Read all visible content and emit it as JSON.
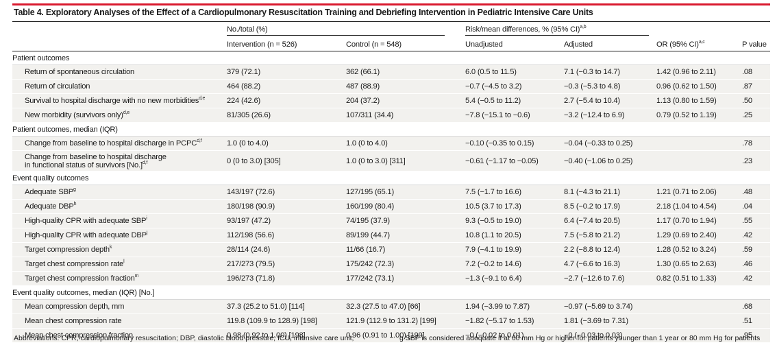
{
  "table": {
    "title": "Table 4. Exploratory Analyses of the Effect of a Cardiopulmonary Resuscitation Training and Debriefing Intervention in Pediatric Intensive Care Units",
    "header": {
      "group1": "No./total (%)",
      "group2": "Risk/mean differences, % (95% CI)",
      "group2_sup": "a,b",
      "intervention": "Intervention (n = 526)",
      "control": "Control (n = 548)",
      "unadjusted": "Unadjusted",
      "adjusted": "Adjusted",
      "or": "OR (95% CI)",
      "or_sup": "a,c",
      "pvalue": "P value"
    },
    "sections": [
      {
        "title": "Patient outcomes",
        "rows": [
          {
            "label": "Return of spontaneous circulation",
            "sup": "",
            "intervention": "379 (72.1)",
            "control": "362 (66.1)",
            "unadjusted": "6.0 (0.5 to 11.5)",
            "adjusted": "7.1 (−0.3 to 14.7)",
            "or": "1.42 (0.96 to 2.11)",
            "p": ".08"
          },
          {
            "label": "Return of circulation",
            "sup": "",
            "intervention": "464 (88.2)",
            "control": "487 (88.9)",
            "unadjusted": "−0.7 (−4.5 to 3.2)",
            "adjusted": "−0.3 (−5.3 to 4.8)",
            "or": "0.96 (0.62 to 1.50)",
            "p": ".87"
          },
          {
            "label": "Survival to hospital discharge with no new morbidities",
            "sup": "d,e",
            "intervention": "224 (42.6)",
            "control": "204 (37.2)",
            "unadjusted": "5.4 (−0.5 to 11.2)",
            "adjusted": "2.7 (−5.4 to 10.4)",
            "or": "1.13 (0.80 to 1.59)",
            "p": ".50"
          },
          {
            "label": "New morbidity (survivors only)",
            "sup": "d,e",
            "intervention": "81/305 (26.6)",
            "control": "107/311 (34.4)",
            "unadjusted": "−7.8 (−15.1 to −0.6)",
            "adjusted": "−3.2 (−12.4 to 6.9)",
            "or": "0.79 (0.52 to 1.19)",
            "p": ".25"
          }
        ]
      },
      {
        "title": "Patient outcomes, median (IQR)",
        "rows": [
          {
            "label": "Change from baseline to hospital discharge in PCPC",
            "sup": "d,f",
            "intervention": "1.0 (0 to 4.0)",
            "control": "1.0 (0 to 4.0)",
            "unadjusted": "−0.10 (−0.35 to 0.15)",
            "adjusted": "−0.04 (−0.33 to 0.25)",
            "or": "",
            "p": ".78"
          },
          {
            "label": "Change from baseline to hospital discharge",
            "label2": "in functional status of survivors [No.]",
            "sup": "d,f",
            "tall": true,
            "intervention": "0 (0 to 3.0) [305]",
            "control": "1.0 (0 to 3.0) [311]",
            "unadjusted": "−0.61 (−1.17 to −0.05)",
            "adjusted": "−0.40 (−1.06 to 0.25)",
            "or": "",
            "p": ".23"
          }
        ]
      },
      {
        "title": "Event quality outcomes",
        "rows": [
          {
            "label": "Adequate SBP",
            "sup": "g",
            "intervention": "143/197 (72.6)",
            "control": "127/195 (65.1)",
            "unadjusted": "7.5 (−1.7 to 16.6)",
            "adjusted": "8.1 (−4.3 to 21.1)",
            "or": "1.21 (0.71 to 2.06)",
            "p": ".48"
          },
          {
            "label": "Adequate DBP",
            "sup": "h",
            "intervention": "180/198 (90.9)",
            "control": "160/199 (80.4)",
            "unadjusted": "10.5 (3.7 to 17.3)",
            "adjusted": "8.5 (−0.2 to 17.9)",
            "or": "2.18 (1.04 to 4.54)",
            "p": ".04"
          },
          {
            "label": "High-quality CPR with adequate SBP",
            "sup": "i",
            "intervention": "93/197 (47.2)",
            "control": "74/195 (37.9)",
            "unadjusted": "9.3 (−0.5 to 19.0)",
            "adjusted": "6.4 (−7.4 to 20.5)",
            "or": "1.17 (0.70 to 1.94)",
            "p": ".55"
          },
          {
            "label": "High-quality CPR with adequate DBP",
            "sup": "j",
            "intervention": "112/198 (56.6)",
            "control": "89/199 (44.7)",
            "unadjusted": "10.8 (1.1 to 20.5)",
            "adjusted": "7.5 (−5.8 to 21.2)",
            "or": "1.29 (0.69 to 2.40)",
            "p": ".42"
          },
          {
            "label": "Target compression depth",
            "sup": "k",
            "intervention": "28/114 (24.6)",
            "control": "11/66 (16.7)",
            "unadjusted": "7.9 (−4.1 to 19.9)",
            "adjusted": "2.2 (−8.8 to 12.4)",
            "or": "1.28 (0.52 to 3.24)",
            "p": ".59"
          },
          {
            "label": "Target chest compression rate",
            "sup": "l",
            "intervention": "217/273 (79.5)",
            "control": "175/242 (72.3)",
            "unadjusted": "7.2 (−0.2 to 14.6)",
            "adjusted": "4.7 (−6.6 to 16.3)",
            "or": "1.30 (0.65 to 2.63)",
            "p": ".46"
          },
          {
            "label": "Target chest compression fraction",
            "sup": "m",
            "intervention": "196/273 (71.8)",
            "control": "177/242 (73.1)",
            "unadjusted": "−1.3 (−9.1 to 6.4)",
            "adjusted": "−2.7 (−12.6 to 7.6)",
            "or": "0.82 (0.51 to 1.33)",
            "p": ".42"
          }
        ]
      },
      {
        "title": "Event quality outcomes, median (IQR) [No.]",
        "rows": [
          {
            "label": "Mean compression depth, mm",
            "sup": "",
            "intervention": "37.3 (25.2 to 51.0) [114]",
            "control": "32.3 (27.5 to 47.0) [66]",
            "unadjusted": "1.94 (−3.99 to 7.87)",
            "adjusted": "−0.97 (−5.69 to 3.74)",
            "or": "",
            "p": ".68"
          },
          {
            "label": "Mean chest compression rate",
            "sup": "",
            "intervention": "119.8 (109.9 to 128.9) [198]",
            "control": "121.9 (112.9 to 131.2) [199]",
            "unadjusted": "−1.82 (−5.17 to 1.53)",
            "adjusted": "1.81 (−3.69 to 7.31)",
            "or": "",
            "p": ".51"
          },
          {
            "label": "Mean chest compression fraction",
            "sup": "",
            "intervention": "0.98 (0.92 to 1.00) [198]",
            "control": "0.96 (0.91 to 1.00) [199]",
            "unadjusted": "−0 (−0.02 to 0.01)",
            "adjusted": "−0 (−0.03 to 0.03)",
            "or": "",
            "p": ".95"
          }
        ]
      }
    ],
    "footer_left": "Abbreviations: CPR, cardiopulmonary resuscitation; DBP, diastolic blood pressure; ICU, intensive care unit;",
    "footer_right": "g SBP is considered adequate if at 60 mm Hg or higher for patients younger than 1 year or 80 mm Hg for patients"
  }
}
